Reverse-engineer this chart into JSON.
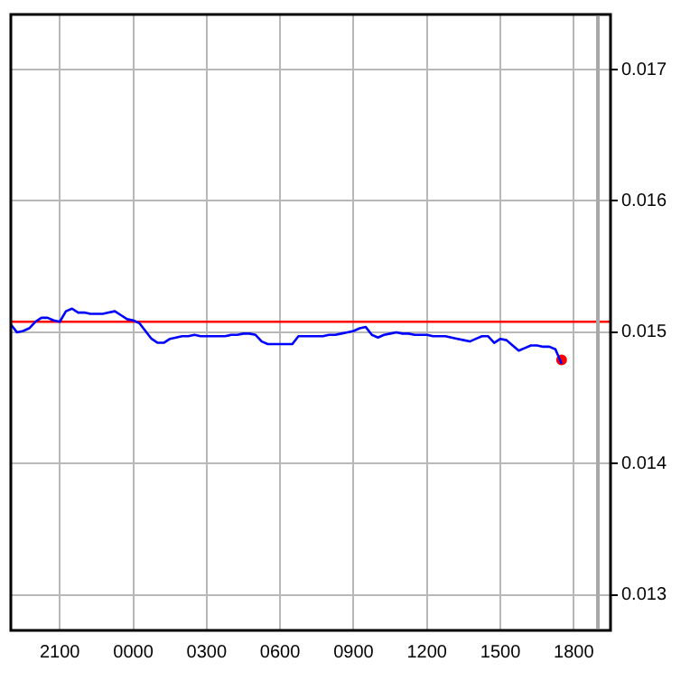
{
  "chart_data": {
    "type": "line",
    "categories": [
      null,
      null,
      null,
      null,
      null,
      null,
      null,
      null,
      "2100",
      null,
      null,
      null,
      null,
      null,
      null,
      null,
      null,
      null,
      null,
      null,
      "0000",
      null,
      null,
      null,
      null,
      null,
      null,
      null,
      null,
      null,
      null,
      null,
      "0300",
      null,
      null,
      null,
      null,
      null,
      null,
      null,
      null,
      null,
      null,
      null,
      "0600",
      null,
      null,
      null,
      null,
      null,
      null,
      null,
      null,
      null,
      null,
      null,
      "0900",
      null,
      null,
      null,
      null,
      null,
      null,
      null,
      null,
      null,
      null,
      null,
      "1200",
      null,
      null,
      null,
      null,
      null,
      null,
      null,
      null,
      null,
      null,
      null,
      "1500",
      null,
      null,
      null,
      null,
      null,
      null,
      null,
      null,
      null,
      null,
      null,
      "1800",
      null,
      null,
      null,
      null,
      null,
      null
    ],
    "series": [
      {
        "color": "#0000ff",
        "values": [
          0.01506,
          0.015,
          0.01501,
          0.01503,
          0.01508,
          0.01511,
          0.01511,
          0.01509,
          0.01508,
          0.01516,
          0.01518,
          0.01515,
          0.01515,
          0.01514,
          0.01514,
          0.01514,
          0.01515,
          0.01516,
          0.01513,
          0.0151,
          0.01509,
          0.01507,
          0.01501,
          0.01495,
          0.01492,
          0.01492,
          0.01495,
          0.01496,
          0.01497,
          0.01497,
          0.01498,
          0.01497,
          0.01497,
          0.01497,
          0.01497,
          0.01497,
          0.01498,
          0.01498,
          0.01499,
          0.01499,
          0.01498,
          0.01493,
          0.01491,
          0.01491,
          0.01491,
          0.01491,
          0.01491,
          0.01497,
          0.01497,
          0.01497,
          0.01497,
          0.01497,
          0.01498,
          0.01498,
          0.01499,
          0.015,
          0.01501,
          0.01503,
          0.01504,
          0.01498,
          0.01496,
          0.01498,
          0.01499,
          0.015,
          0.01499,
          0.01499,
          0.01498,
          0.01498,
          0.01498,
          0.01497,
          0.01497,
          0.01497,
          0.01496,
          0.01495,
          0.01494,
          0.01493,
          0.01495,
          0.01497,
          0.01497,
          0.01492,
          0.01495,
          0.01494,
          0.0149,
          0.01486,
          0.01488,
          0.0149,
          0.0149,
          0.01489,
          0.01489,
          0.01487,
          0.01476,
          null,
          null,
          null,
          null,
          null,
          null,
          null,
          null
        ]
      },
      {
        "type": "scatter",
        "color": "#ff0000",
        "marker": "circle",
        "values": [
          null,
          null,
          null,
          null,
          null,
          null,
          null,
          null,
          null,
          null,
          null,
          null,
          null,
          null,
          null,
          null,
          null,
          null,
          null,
          null,
          null,
          null,
          null,
          null,
          null,
          null,
          null,
          null,
          null,
          null,
          null,
          null,
          null,
          null,
          null,
          null,
          null,
          null,
          null,
          null,
          null,
          null,
          null,
          null,
          null,
          null,
          null,
          null,
          null,
          null,
          null,
          null,
          null,
          null,
          null,
          null,
          null,
          null,
          null,
          null,
          null,
          null,
          null,
          null,
          null,
          null,
          null,
          null,
          null,
          null,
          null,
          null,
          null,
          null,
          null,
          null,
          null,
          null,
          null,
          null,
          null,
          null,
          null,
          null,
          null,
          null,
          null,
          null,
          null,
          null,
          0.01479,
          null,
          null,
          null,
          null,
          null,
          null,
          null,
          null
        ]
      }
    ],
    "ylim": [
      0.01273,
      0.01742
    ],
    "yticks": [
      0.013,
      0.014,
      0.015,
      0.016,
      0.017
    ],
    "ref_lines": [
      {
        "axis": "y",
        "value": 0.01508,
        "color": "#ff0000"
      }
    ],
    "grid": true,
    "legend": false,
    "marker": "none",
    "line_style": "solid"
  }
}
